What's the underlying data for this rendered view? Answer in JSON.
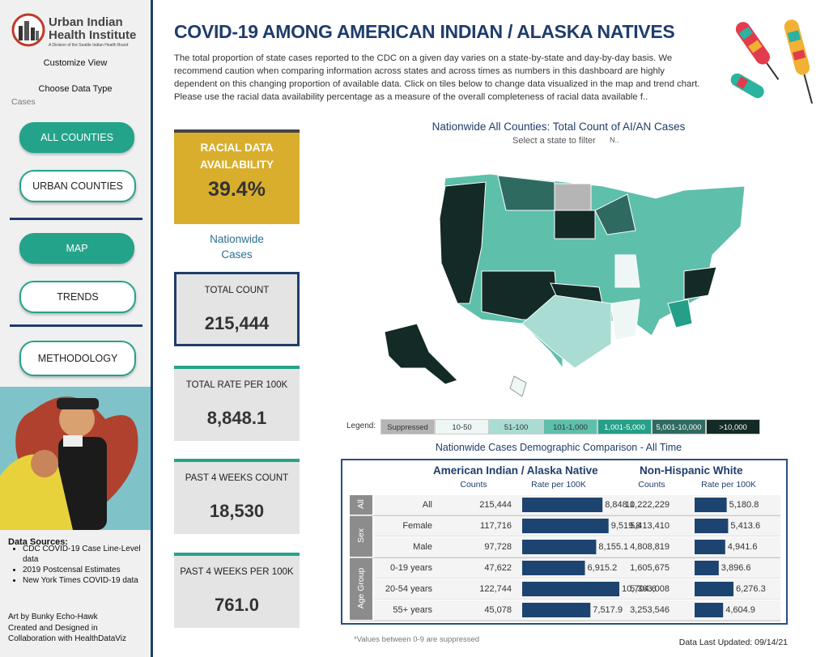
{
  "sidebar": {
    "logo_lines": [
      "Urban Indian",
      "Health Institute"
    ],
    "logo_tagline": "A Division of the Seattle Indian Health Board",
    "customize": "Customize View",
    "data_type_label": "Choose Data Type",
    "data_type_value": "Cases",
    "buttons": [
      "ALL COUNTIES",
      "URBAN COUNTIES",
      "MAP",
      "TRENDS",
      "METHODOLOGY"
    ],
    "sources_title": "Data Sources:",
    "sources": [
      "CDC COVID-19 Case Line-Level data",
      "2019 Postcensal Estimates",
      "New York Times COVID-19 data"
    ],
    "credits": [
      "Art by Bunky Echo-Hawk",
      "Created and Designed in",
      "Collaboration with HealthDataViz"
    ]
  },
  "header": {
    "title": "COVID-19 AMONG AMERICAN INDIAN / ALASKA NATIVES",
    "description": "The total proportion of state cases reported to the CDC on a given day varies on a state-by-state and day-by-day basis. We recommend caution when comparing information across states and across times as numbers in this dashboard are highly dependent on this changing proportion of available data. Click on tiles below to change data visualized in the map and trend chart. Please use the racial data availability percentage as a measure of the overall completeness of racial data available f.."
  },
  "cards": {
    "racial": {
      "label": "RACIAL DATA AVAILABILITY",
      "value": "39.4%"
    },
    "nationwide": "Nationwide Cases",
    "kpis": [
      {
        "label": "TOTAL COUNT",
        "value": "215,444"
      },
      {
        "label": "TOTAL RATE PER 100K",
        "value": "8,848.1"
      },
      {
        "label": "PAST 4 WEEKS COUNT",
        "value": "18,530"
      },
      {
        "label": "PAST 4 WEEKS PER 100K",
        "value": "761.0"
      }
    ]
  },
  "map": {
    "title": "Nationwide All Counties: Total Count of AI/AN Cases",
    "subtitle": "Select a state to filter",
    "filter_value": "N..",
    "legend_label": "Legend:",
    "legend": [
      {
        "label": "Suppressed",
        "color": "#b5b5b5"
      },
      {
        "label": "10-50",
        "color": "#eef7f5"
      },
      {
        "label": "51-100",
        "color": "#a9dcd2"
      },
      {
        "label": "101-1,000",
        "color": "#5ebfab"
      },
      {
        "label": "1,001-5,000",
        "color": "#259f88"
      },
      {
        "label": "5,001-10,000",
        "color": "#2e6a60"
      },
      {
        "label": ">10,000",
        "color": "#132a26"
      }
    ]
  },
  "table": {
    "title": "Nationwide Cases Demographic Comparison - All Time",
    "groups": [
      "American Indian / Alaska Native",
      "Non-Hispanic White"
    ],
    "columns": [
      "Counts",
      "Rate per 100K",
      "Counts",
      "Rate per 100K"
    ],
    "sections": [
      {
        "name": "All",
        "rows": [
          {
            "label": "All",
            "aian_count": "215,444",
            "aian_rate": {
              "value": 8848.1,
              "label": "8,848.1"
            },
            "white_count": "10,222,229",
            "white_rate": {
              "value": 5180.8,
              "label": "5,180.8"
            }
          }
        ]
      },
      {
        "name": "Sex",
        "rows": [
          {
            "label": "Female",
            "aian_count": "117,716",
            "aian_rate": {
              "value": 9519.8,
              "label": "9,519.8"
            },
            "white_count": "5,413,410",
            "white_rate": {
              "value": 5413.6,
              "label": "5,413.6"
            }
          },
          {
            "label": "Male",
            "aian_count": "97,728",
            "aian_rate": {
              "value": 8155.1,
              "label": "8,155.1"
            },
            "white_count": "4,808,819",
            "white_rate": {
              "value": 4941.6,
              "label": "4,941.6"
            }
          }
        ]
      },
      {
        "name": "Age Group",
        "rows": [
          {
            "label": "0-19 years",
            "aian_count": "47,622",
            "aian_rate": {
              "value": 6915.2,
              "label": "6,915.2"
            },
            "white_count": "1,605,675",
            "white_rate": {
              "value": 3896.6,
              "label": "3,896.6"
            }
          },
          {
            "label": "20-54 years",
            "aian_count": "122,744",
            "aian_rate": {
              "value": 10704.6,
              "label": "10,704.6"
            },
            "white_count": "5,363,008",
            "white_rate": {
              "value": 6276.3,
              "label": "6,276.3"
            }
          },
          {
            "label": "55+ years",
            "aian_count": "45,078",
            "aian_rate": {
              "value": 7517.9,
              "label": "7,517.9"
            },
            "white_count": "3,253,546",
            "white_rate": {
              "value": 4604.9,
              "label": "4,604.9"
            }
          }
        ]
      }
    ]
  },
  "footnote": "*Values between 0-9 are suppressed",
  "updated": "Data Last Updated: 09/14/21"
}
